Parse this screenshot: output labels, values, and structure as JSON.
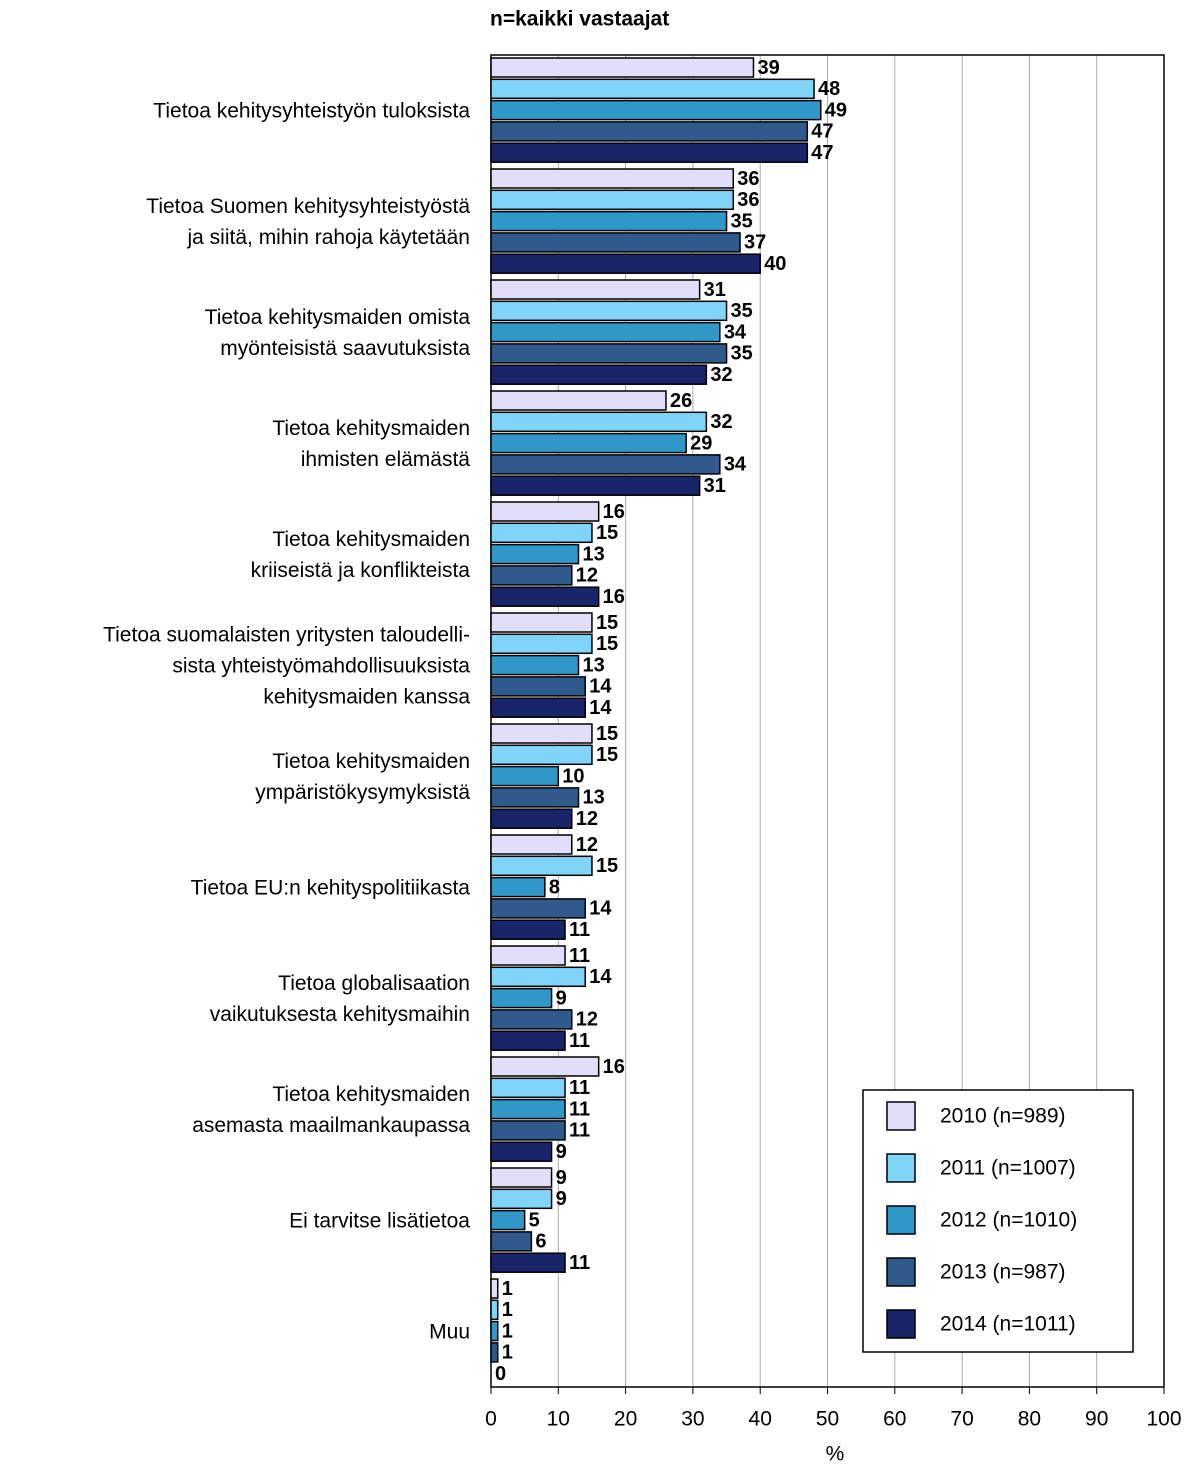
{
  "chart_data": {
    "type": "bar",
    "orientation": "horizontal",
    "title": "n=kaikki vastaajat",
    "x_label": "%",
    "categories": [
      "Tietoa kehitysyhteistyön tuloksista",
      "Tietoa Suomen kehitysyhteistyöstä\nja siitä, mihin rahoja käytetään",
      "Tietoa kehitysmaiden omista\nmyönteisistä saavutuksista",
      "Tietoa kehitysmaiden\nihmisten elämästä",
      "Tietoa kehitysmaiden\nkriiseistä ja konflikteista",
      "Tietoa suomalaisten yritysten  taloudelli-\nsista yhteistyömahdollisuuksista\nkehitysmaiden kanssa",
      "Tietoa kehitysmaiden\nympäristökysymyksistä",
      "Tietoa EU:n kehityspolitiikasta",
      "Tietoa globalisaation\nvaikutuksesta kehitysmaihin",
      "Tietoa kehitysmaiden\nasemasta maailmankaupassa",
      "Ei tarvitse lisätietoa",
      "Muu"
    ],
    "series": [
      {
        "name": "2010 (n=989)",
        "color": "#e2ddf8",
        "values": [
          39,
          36,
          31,
          26,
          16,
          15,
          15,
          12,
          11,
          16,
          9,
          1
        ]
      },
      {
        "name": "2011 (n=1007)",
        "color": "#80d4f8",
        "values": [
          48,
          36,
          35,
          32,
          15,
          15,
          15,
          15,
          14,
          11,
          9,
          1
        ]
      },
      {
        "name": "2012 (n=1010)",
        "color": "#2f98c9",
        "values": [
          49,
          35,
          34,
          29,
          13,
          13,
          10,
          8,
          9,
          11,
          5,
          1
        ]
      },
      {
        "name": "2013 (n=987)",
        "color": "#30598c",
        "values": [
          47,
          37,
          35,
          34,
          12,
          14,
          13,
          14,
          12,
          11,
          6,
          1
        ]
      },
      {
        "name": "2014 (n=1011)",
        "color": "#1a2468",
        "values": [
          47,
          40,
          32,
          31,
          16,
          14,
          12,
          11,
          11,
          9,
          11,
          0
        ]
      }
    ],
    "xlim": [
      0,
      100
    ],
    "xticks": [
      0,
      10,
      20,
      30,
      40,
      50,
      60,
      70,
      80,
      90,
      100
    ],
    "grid": true,
    "legend": "lower right"
  }
}
